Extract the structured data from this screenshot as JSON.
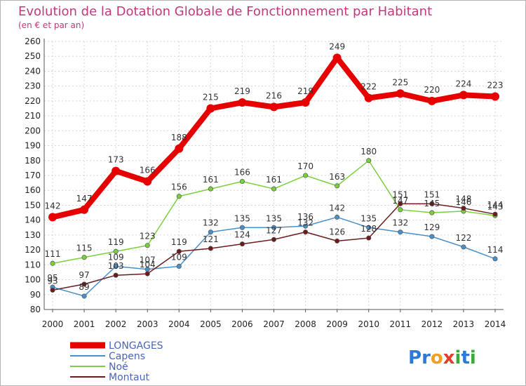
{
  "chart_data": {
    "type": "line",
    "title": "Evolution de la Dotation Globale de Fonctionnement par Habitant",
    "subtitle": "(en € et par an)",
    "categories": [
      "2000",
      "2001",
      "2002",
      "2003",
      "2004",
      "2005",
      "2006",
      "2007",
      "2008",
      "2009",
      "2010",
      "2011",
      "2012",
      "2013",
      "2014"
    ],
    "ylim": [
      80,
      260
    ],
    "yticks": [
      "80",
      "90",
      "100",
      "110",
      "120",
      "130",
      "140",
      "150",
      "160",
      "170",
      "180",
      "190",
      "200",
      "210",
      "220",
      "230",
      "240",
      "250",
      "260"
    ],
    "grid": true,
    "legend_position": "bottom-left",
    "series": [
      {
        "name": "LONGAGES",
        "color": "#e60000",
        "values": [
          142,
          147,
          173,
          166,
          188,
          215,
          219,
          216,
          219,
          249,
          222,
          225,
          220,
          224,
          223
        ]
      },
      {
        "name": "Capens",
        "color": "#4a90c8",
        "values": [
          95,
          89,
          109,
          107,
          109,
          132,
          135,
          135,
          136,
          142,
          135,
          132,
          129,
          122,
          114
        ]
      },
      {
        "name": "Noé",
        "color": "#7ad03c",
        "values": [
          111,
          115,
          119,
          123,
          156,
          161,
          166,
          161,
          170,
          163,
          180,
          147,
          145,
          146,
          143
        ]
      },
      {
        "name": "Montaut",
        "color": "#6b1b1b",
        "values": [
          93,
          97,
          103,
          104,
          119,
          121,
          124,
          127,
          132,
          126,
          128,
          151,
          151,
          148,
          144
        ]
      }
    ]
  },
  "branding": {
    "logo_text": "Proxiti",
    "letters": [
      {
        "ch": "P",
        "color": "#2a7ad6"
      },
      {
        "ch": "r",
        "color": "#2a7ad6"
      },
      {
        "ch": "o",
        "color": "#f0a020"
      },
      {
        "ch": "x",
        "color": "#e63c2c"
      },
      {
        "ch": "i",
        "color": "#3aa83a"
      },
      {
        "ch": "t",
        "color": "#2a7ad6"
      },
      {
        "ch": "i",
        "color": "#3aa83a"
      }
    ]
  }
}
